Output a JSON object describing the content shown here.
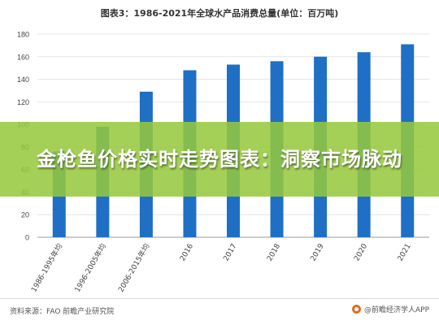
{
  "chart_data": {
    "type": "bar",
    "title": "图表3：1986-2021年全球水产品消费总量(单位：百万吨)",
    "categories": [
      "1986-1995年均",
      "1996-2005年均",
      "2006-2015年均",
      "2016",
      "2017",
      "2018",
      "2019",
      "2020",
      "2021"
    ],
    "values": [
      76,
      98,
      129,
      148,
      153,
      156,
      160,
      164,
      171
    ],
    "ylim": [
      0,
      180
    ],
    "yticks": [
      0,
      20,
      40,
      60,
      80,
      100,
      120,
      140,
      160,
      180
    ],
    "grid": true,
    "bar_color": "#1f6fc5"
  },
  "banner": {
    "text": "金枪鱼价格实时走势图表：洞察市场脉动",
    "background": "#96c83c"
  },
  "footer": {
    "source": "资料来源：FAO 前瞻产业研究院",
    "brand": "@前瞻经济学人APP"
  },
  "watermark": "前瞻产业研究院"
}
